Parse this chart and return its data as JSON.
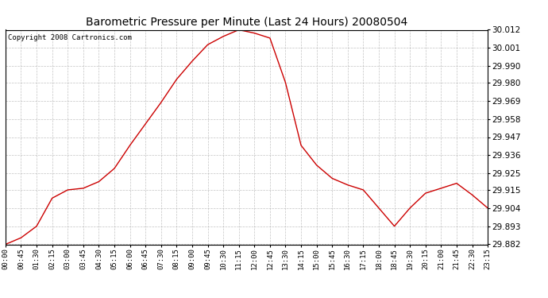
{
  "title": "Barometric Pressure per Minute (Last 24 Hours) 20080504",
  "copyright": "Copyright 2008 Cartronics.com",
  "line_color": "#cc0000",
  "background_color": "#ffffff",
  "grid_color": "#aaaaaa",
  "ylim": [
    29.882,
    30.012
  ],
  "yticks": [
    29.882,
    29.893,
    29.904,
    29.915,
    29.925,
    29.936,
    29.947,
    29.958,
    29.969,
    29.98,
    29.99,
    30.001,
    30.012
  ],
  "xtick_labels": [
    "00:00",
    "00:45",
    "01:30",
    "02:15",
    "03:00",
    "03:45",
    "04:30",
    "05:15",
    "06:00",
    "06:45",
    "07:30",
    "08:15",
    "09:00",
    "09:45",
    "10:30",
    "11:15",
    "12:00",
    "12:45",
    "13:30",
    "14:15",
    "15:00",
    "15:45",
    "16:30",
    "17:15",
    "18:00",
    "18:45",
    "19:30",
    "20:15",
    "21:00",
    "21:45",
    "22:30",
    "23:15"
  ],
  "x_values": [
    0,
    45,
    90,
    135,
    180,
    225,
    270,
    315,
    360,
    405,
    450,
    495,
    540,
    585,
    630,
    675,
    720,
    765,
    810,
    855,
    900,
    945,
    990,
    1035,
    1080,
    1125,
    1170,
    1215,
    1260,
    1305,
    1350,
    1395
  ],
  "y_values": [
    29.882,
    29.886,
    29.893,
    29.91,
    29.915,
    29.916,
    29.92,
    29.928,
    29.942,
    29.955,
    29.968,
    29.982,
    29.993,
    30.003,
    30.008,
    30.012,
    30.01,
    30.007,
    29.98,
    29.942,
    29.93,
    29.922,
    29.918,
    29.915,
    29.904,
    29.893,
    29.904,
    29.913,
    29.916,
    29.919,
    29.912,
    29.904
  ]
}
